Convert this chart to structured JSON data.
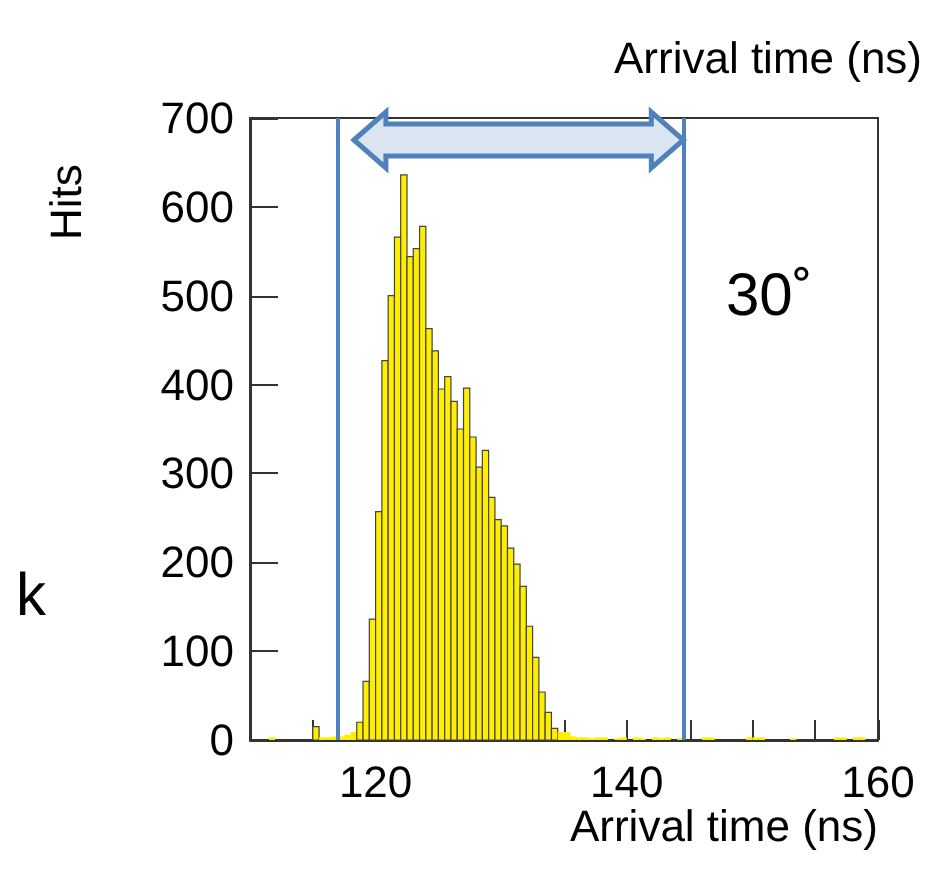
{
  "chart_data": {
    "type": "histogram",
    "xlabel": "Arrival time (ns)",
    "ylabel": "Hits",
    "annotations": [
      "Arrival time (ns)",
      "30˚",
      "k"
    ],
    "bins": [
      110,
      110.5,
      111,
      111.5,
      112,
      112.5,
      113,
      113.5,
      114,
      114.5,
      115,
      115.5,
      116,
      116.5,
      117,
      117.5,
      118,
      118.5,
      119,
      119.5,
      120,
      120.5,
      121,
      121.5,
      122,
      122.5,
      123,
      123.5,
      124,
      124.5,
      125,
      125.5,
      126,
      126.5,
      127,
      127.5,
      128,
      128.5,
      129,
      129.5,
      130,
      130.5,
      131,
      131.5,
      132,
      132.5,
      133,
      133.5,
      134,
      134.5,
      135,
      135.5,
      136,
      136.5,
      137,
      137.5,
      138,
      138.5,
      139,
      139.5,
      140,
      140.5,
      141,
      141.5,
      142,
      142.5,
      143,
      143.5,
      144,
      144.5,
      145,
      145.5,
      146,
      146.5,
      147,
      147.5,
      148,
      148.5,
      149,
      149.5,
      150,
      150.5,
      151,
      151.5,
      152,
      152.5,
      153,
      153.5,
      154,
      154.5,
      155,
      155.5,
      156,
      156.5,
      157,
      157.5,
      158,
      158.5,
      159,
      159.5,
      160
    ],
    "values": [
      0,
      0,
      0,
      3,
      0,
      0,
      0,
      0,
      0,
      0,
      15,
      3,
      3,
      4,
      4,
      6,
      9,
      20,
      66,
      136,
      257,
      427,
      500,
      566,
      636,
      544,
      553,
      578,
      463,
      438,
      395,
      409,
      381,
      350,
      396,
      341,
      307,
      326,
      273,
      248,
      241,
      216,
      198,
      173,
      128,
      93,
      54,
      31,
      13,
      9,
      9,
      4,
      3,
      3,
      2,
      3,
      3,
      0,
      2,
      3,
      0,
      3,
      2,
      0,
      3,
      2,
      3,
      0,
      2,
      0,
      0,
      0,
      3,
      3,
      0,
      0,
      0,
      0,
      0,
      3,
      3,
      3,
      0,
      0,
      0,
      0,
      2,
      0,
      0,
      0,
      0,
      0,
      0,
      3,
      3,
      0,
      3,
      3,
      0,
      0
    ],
    "color": "#ffee00",
    "xlim": [
      110,
      160
    ],
    "xticks": [
      {
        "value": 115,
        "label": null
      },
      120,
      {
        "value": 125,
        "label": null
      },
      {
        "value": 130,
        "label": null
      },
      {
        "value": 135,
        "label": null
      },
      140,
      {
        "value": 145,
        "label": null
      },
      {
        "value": 150,
        "label": null
      },
      {
        "value": 155,
        "label": null
      },
      160
    ],
    "ylim": [
      0,
      700
    ],
    "yticks": [
      0,
      100,
      200,
      300,
      400,
      500,
      600,
      700
    ],
    "ref_lines": [
      {
        "axis": "x",
        "value": 117,
        "color": "#4f81bd"
      },
      {
        "axis": "x",
        "value": 144.5,
        "color": "#4f81bd"
      }
    ],
    "grid": false
  }
}
